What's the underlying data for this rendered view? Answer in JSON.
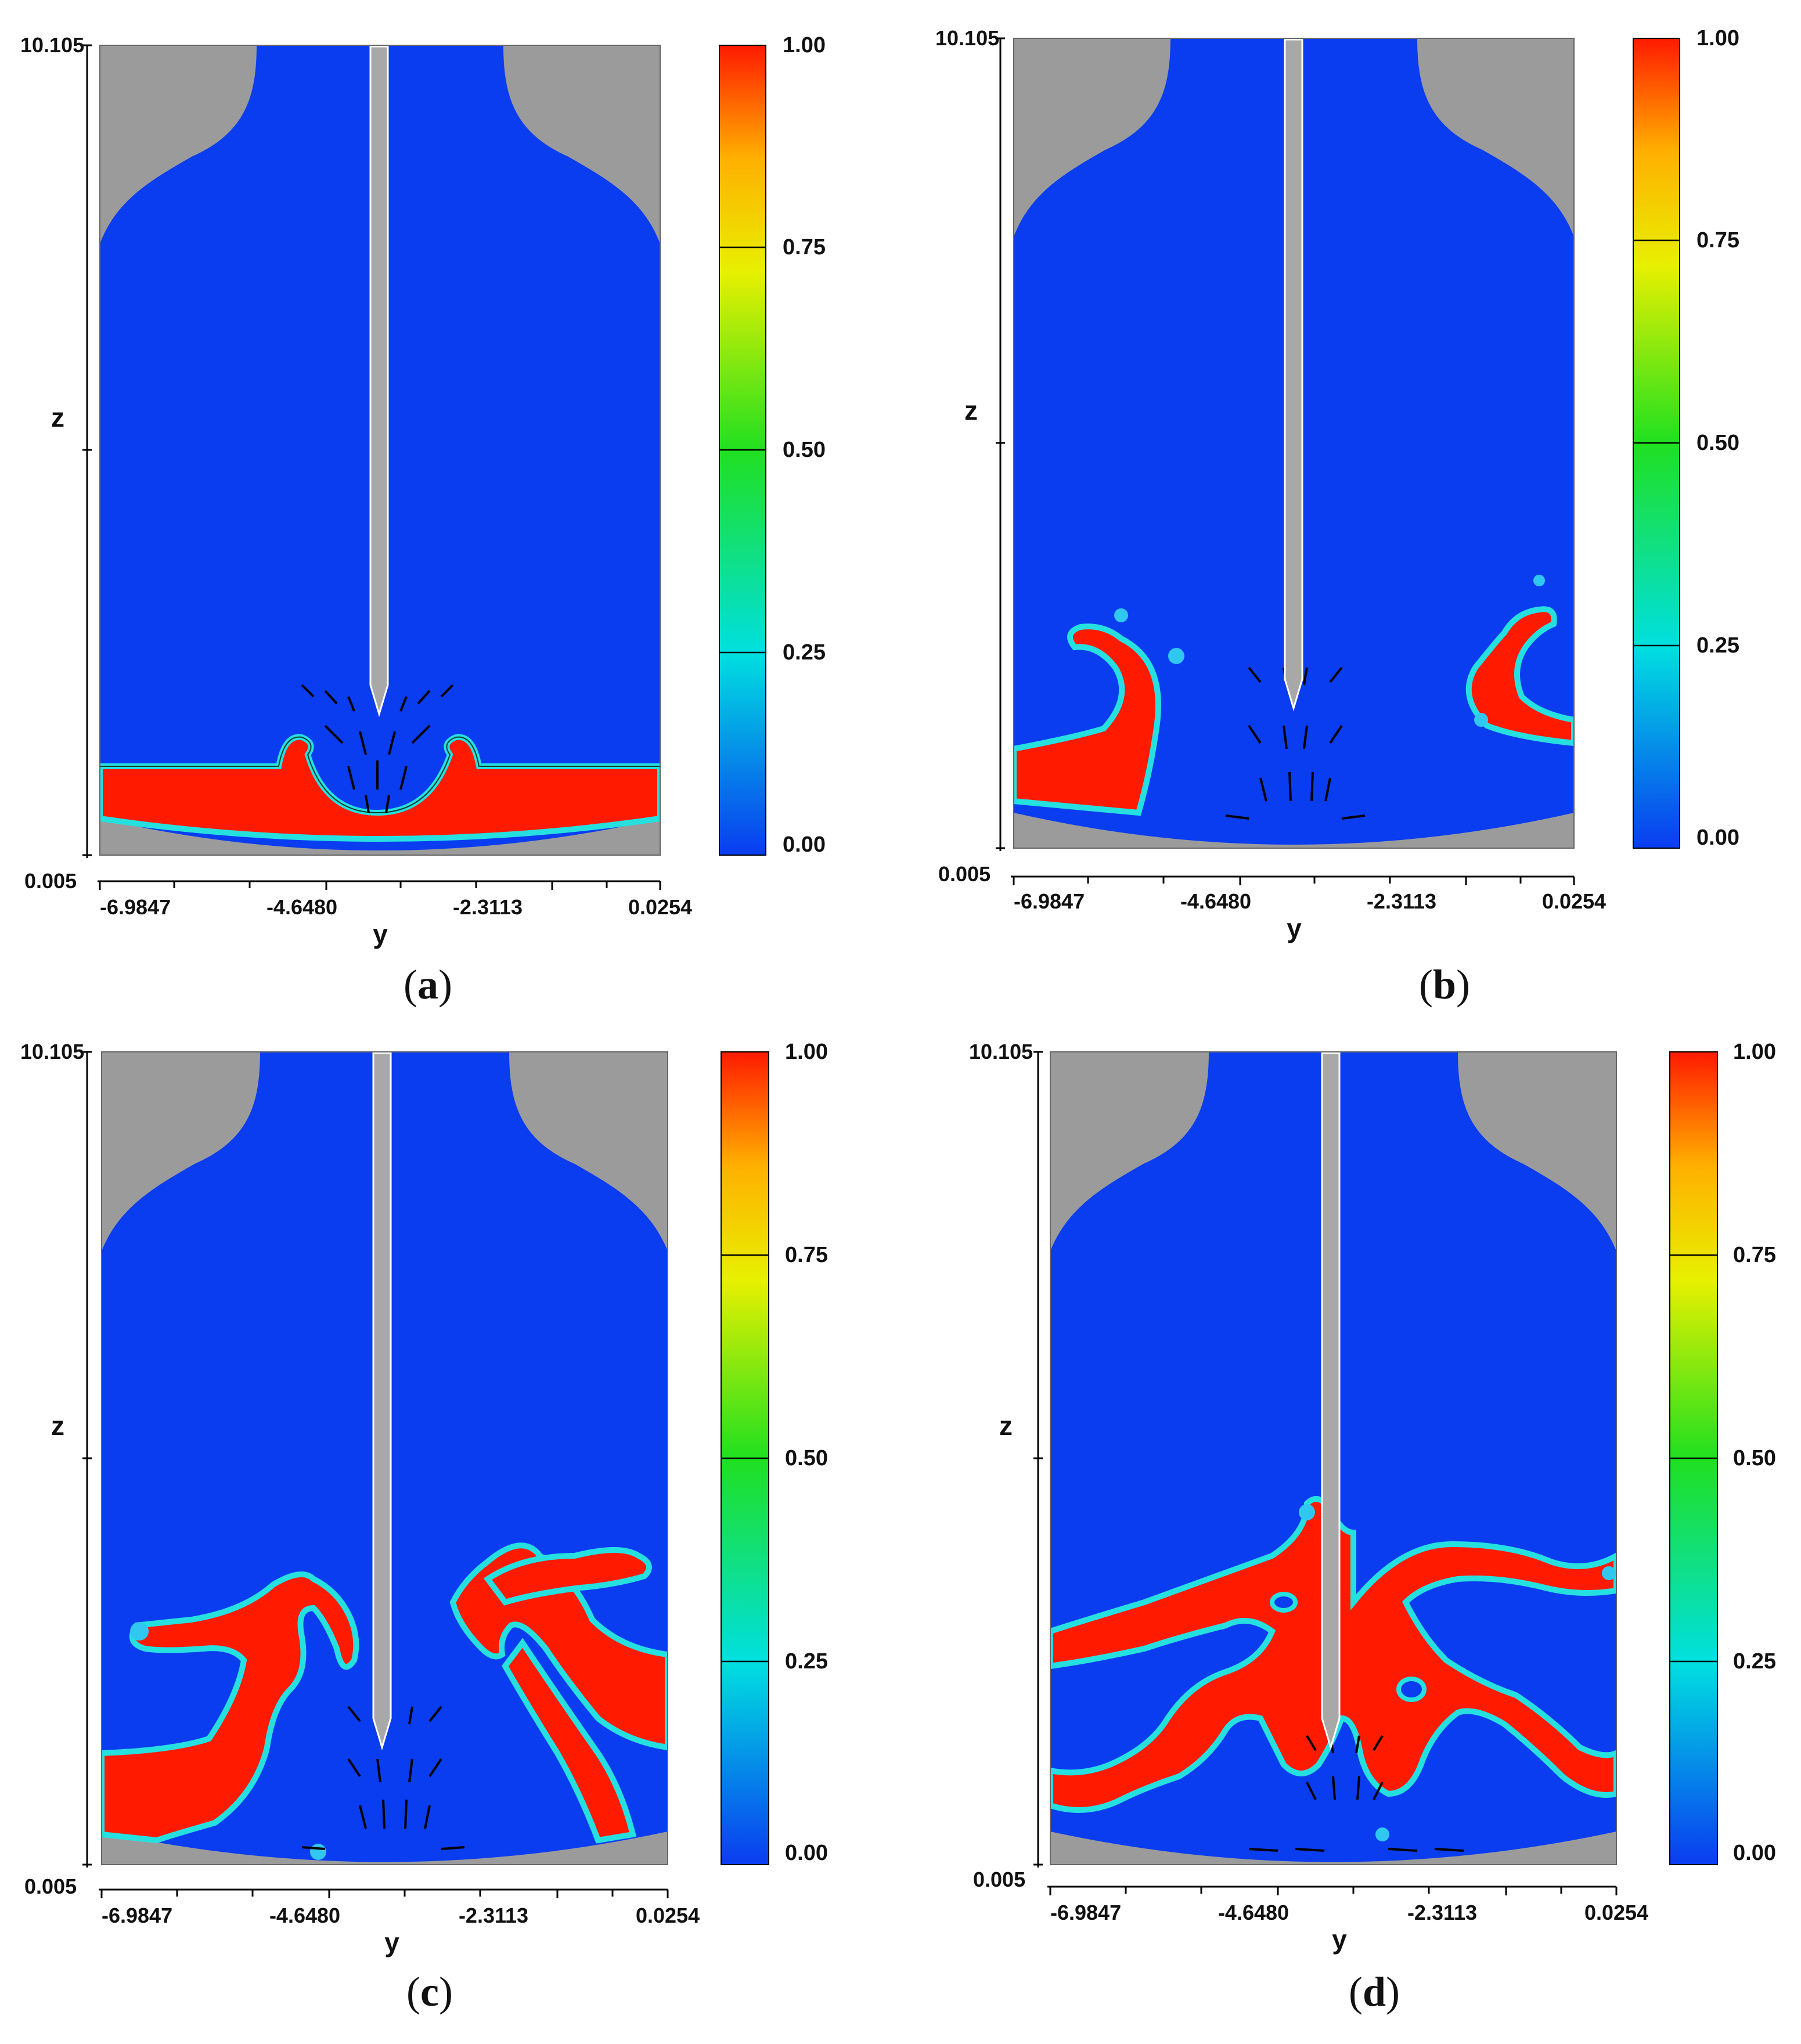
{
  "chart_data": [
    {
      "type": "heatmap",
      "caption": "a",
      "xlabel": "y",
      "ylabel": "z",
      "x_ticks": [
        "-6.9847",
        "-4.6480",
        "-2.3113",
        "0.0254"
      ],
      "y_ticks": [
        "10.105",
        "0.005"
      ],
      "xlim": [
        -9.32,
        0.0254
      ],
      "ylim": [
        0.005,
        10.105
      ],
      "colorbar": {
        "ticks": [
          "1.00",
          "0.75",
          "0.50",
          "0.25",
          "0.00"
        ],
        "range": [
          0,
          1
        ]
      },
      "colors": {
        "phase_high": "#ff1a00",
        "phase_low": "#0a3cf0",
        "wall": "#9b9b9b",
        "interface": "#26e0e0"
      },
      "shaft_bottom_z": 1.9,
      "phase_features": "flat layer with central crater",
      "vectors": "on"
    },
    {
      "type": "heatmap",
      "caption": "b",
      "xlabel": "y",
      "ylabel": "z",
      "x_ticks": [
        "-6.9847",
        "-4.6480",
        "-2.3113",
        "0.0254"
      ],
      "y_ticks": [
        "10.105",
        "0.005"
      ],
      "xlim": [
        -9.32,
        0.0254
      ],
      "ylim": [
        0.005,
        10.105
      ],
      "colorbar": {
        "ticks": [
          "1.00",
          "0.75",
          "0.50",
          "0.25",
          "0.00"
        ],
        "range": [
          0,
          1
        ]
      },
      "colors": {
        "phase_high": "#ff1a00",
        "phase_low": "#0a3cf0",
        "wall": "#9b9b9b",
        "interface": "#26e0e0"
      },
      "shaft_bottom_z": 1.9,
      "phase_features": "two wall-attached curling plumes",
      "vectors": "on"
    },
    {
      "type": "heatmap",
      "caption": "c",
      "xlabel": "y",
      "ylabel": "z",
      "x_ticks": [
        "-6.9847",
        "-4.6480",
        "-2.3113",
        "0.0254"
      ],
      "y_ticks": [
        "10.105",
        "0.005"
      ],
      "xlim": [
        -9.32,
        0.0254
      ],
      "ylim": [
        0.005,
        10.105
      ],
      "colorbar": {
        "ticks": [
          "1.00",
          "0.75",
          "0.50",
          "0.25",
          "0.00"
        ],
        "range": [
          0,
          1
        ]
      },
      "colors": {
        "phase_high": "#ff1a00",
        "phase_low": "#0a3cf0",
        "wall": "#9b9b9b",
        "interface": "#26e0e0"
      },
      "shaft_bottom_z": 2.0,
      "phase_features": "two inclined bands rising toward centre",
      "vectors": "on"
    },
    {
      "type": "heatmap",
      "caption": "d",
      "xlabel": "y",
      "ylabel": "z",
      "x_ticks": [
        "-6.9847",
        "-4.6480",
        "-2.3113",
        "0.0254"
      ],
      "y_ticks": [
        "10.105",
        "0.005"
      ],
      "xlim": [
        -9.32,
        0.0254
      ],
      "ylim": [
        0.005,
        10.105
      ],
      "colorbar": {
        "ticks": [
          "1.00",
          "0.75",
          "0.50",
          "0.25",
          "0.00"
        ],
        "range": [
          0,
          1
        ]
      },
      "colors": {
        "phase_high": "#ff1a00",
        "phase_low": "#0a3cf0",
        "wall": "#9b9b9b",
        "interface": "#26e0e0"
      },
      "shaft_bottom_z": 2.0,
      "phase_features": "branched network around the shaft",
      "vectors": "on"
    }
  ]
}
